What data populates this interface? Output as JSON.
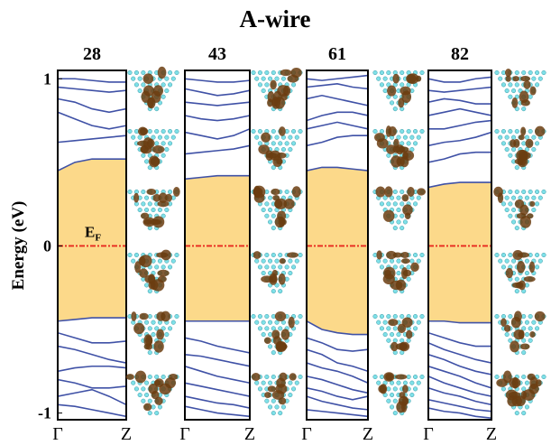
{
  "chart_data": [
    {
      "type": "line",
      "title": "28",
      "suptitle": "A-wire",
      "ylabel": "Energy (eV)",
      "x": [
        0,
        0.25,
        0.5,
        0.75,
        1
      ],
      "xlim": [
        0,
        1
      ],
      "xticks": [
        {
          "value": 0,
          "label": "Γ"
        },
        {
          "value": 1,
          "label": "Z"
        }
      ],
      "ylim": [
        -1.04,
        1.05
      ],
      "yticks": [
        -1,
        0,
        1
      ],
      "color": "#3f51a6",
      "gap_color": "#fcd98a",
      "fermi_level": 0,
      "fermi_color": "#e8281e",
      "fermi_label": {
        "text": "E",
        "subscript": "F"
      },
      "series": [
        {
          "values": [
            0.45,
            0.5,
            0.52,
            0.52,
            0.52
          ]
        },
        {
          "values": [
            0.62,
            0.63,
            0.64,
            0.65,
            0.66
          ]
        },
        {
          "values": [
            0.8,
            0.76,
            0.72,
            0.7,
            0.72
          ]
        },
        {
          "values": [
            0.88,
            0.86,
            0.82,
            0.8,
            0.82
          ]
        },
        {
          "values": [
            0.95,
            0.94,
            0.93,
            0.92,
            0.93
          ]
        },
        {
          "values": [
            1.0,
            1.0,
            0.99,
            0.98,
            0.98
          ]
        },
        {
          "values": [
            -0.45,
            -0.44,
            -0.43,
            -0.43,
            -0.43
          ]
        },
        {
          "values": [
            -0.52,
            -0.55,
            -0.58,
            -0.58,
            -0.57
          ]
        },
        {
          "values": [
            -0.6,
            -0.62,
            -0.65,
            -0.68,
            -0.7
          ]
        },
        {
          "values": [
            -0.75,
            -0.73,
            -0.72,
            -0.72,
            -0.73
          ]
        },
        {
          "values": [
            -0.8,
            -0.82,
            -0.85,
            -0.85,
            -0.84
          ]
        },
        {
          "values": [
            -0.9,
            -0.88,
            -0.86,
            -0.9,
            -0.95
          ]
        },
        {
          "values": [
            -0.95,
            -0.96,
            -0.98,
            -1.0,
            -1.02
          ]
        }
      ]
    },
    {
      "type": "line",
      "title": "43",
      "x": [
        0,
        0.25,
        0.5,
        0.75,
        1
      ],
      "xlim": [
        0,
        1
      ],
      "xticks": [
        {
          "value": 0,
          "label": "Γ"
        },
        {
          "value": 1,
          "label": "Z"
        }
      ],
      "ylim": [
        -1.04,
        1.05
      ],
      "color": "#3f51a6",
      "gap_color": "#fcd98a",
      "fermi_level": 0,
      "fermi_color": "#e8281e",
      "series": [
        {
          "values": [
            0.4,
            0.41,
            0.42,
            0.42,
            0.42
          ]
        },
        {
          "values": [
            0.55,
            0.56,
            0.57,
            0.58,
            0.6
          ]
        },
        {
          "values": [
            0.68,
            0.66,
            0.64,
            0.66,
            0.7
          ]
        },
        {
          "values": [
            0.78,
            0.76,
            0.75,
            0.76,
            0.78
          ]
        },
        {
          "values": [
            0.86,
            0.85,
            0.84,
            0.85,
            0.86
          ]
        },
        {
          "values": [
            0.94,
            0.92,
            0.9,
            0.91,
            0.93
          ]
        },
        {
          "values": [
            1.0,
            0.99,
            0.98,
            0.98,
            0.99
          ]
        },
        {
          "values": [
            -0.45,
            -0.45,
            -0.45,
            -0.45,
            -0.45
          ]
        },
        {
          "values": [
            -0.55,
            -0.57,
            -0.6,
            -0.62,
            -0.64
          ]
        },
        {
          "values": [
            -0.65,
            -0.66,
            -0.68,
            -0.7,
            -0.72
          ]
        },
        {
          "values": [
            -0.72,
            -0.75,
            -0.78,
            -0.8,
            -0.82
          ]
        },
        {
          "values": [
            -0.82,
            -0.84,
            -0.86,
            -0.88,
            -0.9
          ]
        },
        {
          "values": [
            -0.9,
            -0.92,
            -0.94,
            -0.95,
            -0.97
          ]
        },
        {
          "values": [
            -0.96,
            -0.98,
            -1.0,
            -1.01,
            -1.02
          ]
        }
      ]
    },
    {
      "type": "line",
      "title": "61",
      "x": [
        0,
        0.25,
        0.5,
        0.75,
        1
      ],
      "xlim": [
        0,
        1
      ],
      "xticks": [
        {
          "value": 0,
          "label": "Γ"
        },
        {
          "value": 1,
          "label": "Z"
        }
      ],
      "ylim": [
        -1.04,
        1.05
      ],
      "color": "#3f51a6",
      "gap_color": "#fcd98a",
      "fermi_level": 0,
      "fermi_color": "#e8281e",
      "series": [
        {
          "values": [
            0.45,
            0.47,
            0.47,
            0.46,
            0.45
          ]
        },
        {
          "values": [
            0.6,
            0.62,
            0.65,
            0.66,
            0.66
          ]
        },
        {
          "values": [
            0.7,
            0.72,
            0.74,
            0.72,
            0.7
          ]
        },
        {
          "values": [
            0.75,
            0.78,
            0.8,
            0.8,
            0.78
          ]
        },
        {
          "values": [
            0.88,
            0.9,
            0.88,
            0.86,
            0.84
          ]
        },
        {
          "values": [
            0.95,
            0.96,
            0.97,
            0.95,
            0.94
          ]
        },
        {
          "values": [
            1.0,
            0.99,
            1.0,
            1.01,
            1.02
          ]
        },
        {
          "values": [
            -0.45,
            -0.5,
            -0.52,
            -0.53,
            -0.53
          ]
        },
        {
          "values": [
            -0.55,
            -0.58,
            -0.62,
            -0.63,
            -0.62
          ]
        },
        {
          "values": [
            -0.62,
            -0.65,
            -0.7,
            -0.72,
            -0.75
          ]
        },
        {
          "values": [
            -0.7,
            -0.73,
            -0.75,
            -0.78,
            -0.82
          ]
        },
        {
          "values": [
            -0.78,
            -0.8,
            -0.83,
            -0.86,
            -0.88
          ]
        },
        {
          "values": [
            -0.85,
            -0.87,
            -0.9,
            -0.92,
            -0.9
          ]
        },
        {
          "values": [
            -0.9,
            -0.93,
            -0.95,
            -0.97,
            -0.98
          ]
        },
        {
          "values": [
            -0.98,
            -0.99,
            -1.0,
            -1.01,
            -1.02
          ]
        }
      ]
    },
    {
      "type": "line",
      "title": "82",
      "x": [
        0,
        0.25,
        0.5,
        0.75,
        1
      ],
      "xlim": [
        0,
        1
      ],
      "xticks": [
        {
          "value": 0,
          "label": "Γ"
        },
        {
          "value": 1,
          "label": "Z"
        }
      ],
      "ylim": [
        -1.04,
        1.05
      ],
      "color": "#3f51a6",
      "gap_color": "#fcd98a",
      "fermi_level": 0,
      "fermi_color": "#e8281e",
      "series": [
        {
          "values": [
            0.35,
            0.37,
            0.38,
            0.38,
            0.38
          ]
        },
        {
          "values": [
            0.5,
            0.52,
            0.55,
            0.56,
            0.56
          ]
        },
        {
          "values": [
            0.6,
            0.62,
            0.63,
            0.65,
            0.68
          ]
        },
        {
          "values": [
            0.7,
            0.7,
            0.72,
            0.74,
            0.75
          ]
        },
        {
          "values": [
            0.78,
            0.8,
            0.82,
            0.8,
            0.78
          ]
        },
        {
          "values": [
            0.86,
            0.88,
            0.87,
            0.85,
            0.85
          ]
        },
        {
          "values": [
            0.93,
            0.92,
            0.93,
            0.94,
            0.95
          ]
        },
        {
          "values": [
            1.0,
            0.98,
            0.98,
            1.0,
            1.01
          ]
        },
        {
          "values": [
            -0.45,
            -0.45,
            -0.46,
            -0.46,
            -0.46
          ]
        },
        {
          "values": [
            -0.52,
            -0.55,
            -0.58,
            -0.6,
            -0.6
          ]
        },
        {
          "values": [
            -0.58,
            -0.62,
            -0.65,
            -0.68,
            -0.7
          ]
        },
        {
          "values": [
            -0.65,
            -0.68,
            -0.72,
            -0.75,
            -0.77
          ]
        },
        {
          "values": [
            -0.72,
            -0.75,
            -0.78,
            -0.82,
            -0.85
          ]
        },
        {
          "values": [
            -0.78,
            -0.82,
            -0.85,
            -0.88,
            -0.9
          ]
        },
        {
          "values": [
            -0.85,
            -0.88,
            -0.9,
            -0.93,
            -0.95
          ]
        },
        {
          "values": [
            -0.92,
            -0.94,
            -0.96,
            -0.98,
            -0.99
          ]
        },
        {
          "values": [
            -0.97,
            -0.99,
            -1.0,
            -1.02,
            -1.03
          ]
        }
      ]
    }
  ]
}
